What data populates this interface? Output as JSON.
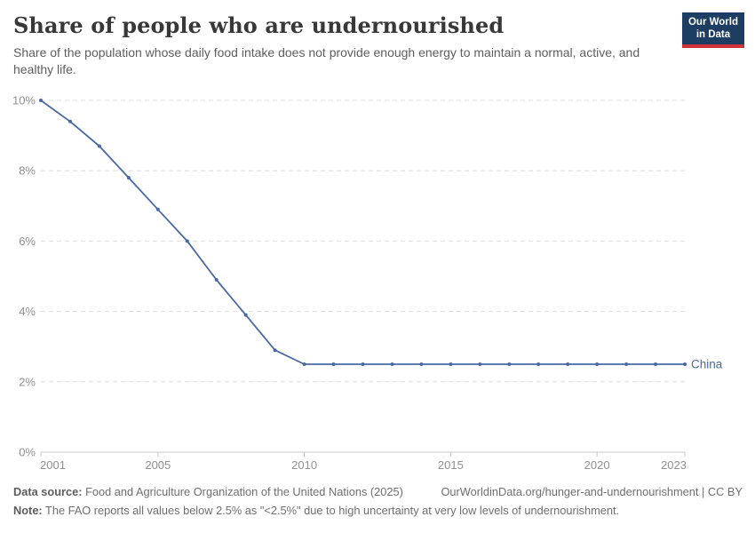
{
  "header": {
    "title": "Share of people who are undernourished",
    "subtitle": "Share of the population whose daily food intake does not provide enough energy to maintain a normal, active, and healthy life.",
    "logo": {
      "line1": "Our World",
      "line2": "in Data",
      "bg_color": "#1d3d63",
      "accent_color": "#d0323a"
    }
  },
  "chart_data": {
    "type": "line",
    "title": "Share of people who are undernourished",
    "x": [
      2001,
      2002,
      2003,
      2004,
      2005,
      2006,
      2007,
      2008,
      2009,
      2010,
      2011,
      2012,
      2013,
      2014,
      2015,
      2016,
      2017,
      2018,
      2019,
      2020,
      2021,
      2022,
      2023
    ],
    "series": [
      {
        "name": "China",
        "color": "#4a69a3",
        "values": [
          10,
          9.4,
          8.7,
          7.8,
          6.9,
          6,
          4.9,
          3.9,
          2.9,
          2.5,
          2.5,
          2.5,
          2.5,
          2.5,
          2.5,
          2.5,
          2.5,
          2.5,
          2.5,
          2.5,
          2.5,
          2.5,
          2.5
        ]
      }
    ],
    "ylim": [
      0,
      10
    ],
    "yticks": [
      0,
      2,
      4,
      6,
      8,
      10
    ],
    "ytick_suffix": "%",
    "xticks": [
      2001,
      2005,
      2010,
      2015,
      2020,
      2023
    ],
    "grid": "horizontal-dashed",
    "gridline_color": "#dddddd",
    "axis_color": "#c8c8c8",
    "axis_label_color": "#8f8f8f",
    "legend_position": "line-end",
    "xlabel": "",
    "ylabel": ""
  },
  "footer": {
    "datasource_label": "Data source:",
    "datasource_text": " Food and Agriculture Organization of the United Nations (2025)",
    "link_text": "OurWorldinData.org/hunger-and-undernourishment | CC BY",
    "note_label": "Note:",
    "note_text": " The FAO reports all values below 2.5% as \"<2.5%\" due to high uncertainty at very low levels of undernourishment."
  }
}
